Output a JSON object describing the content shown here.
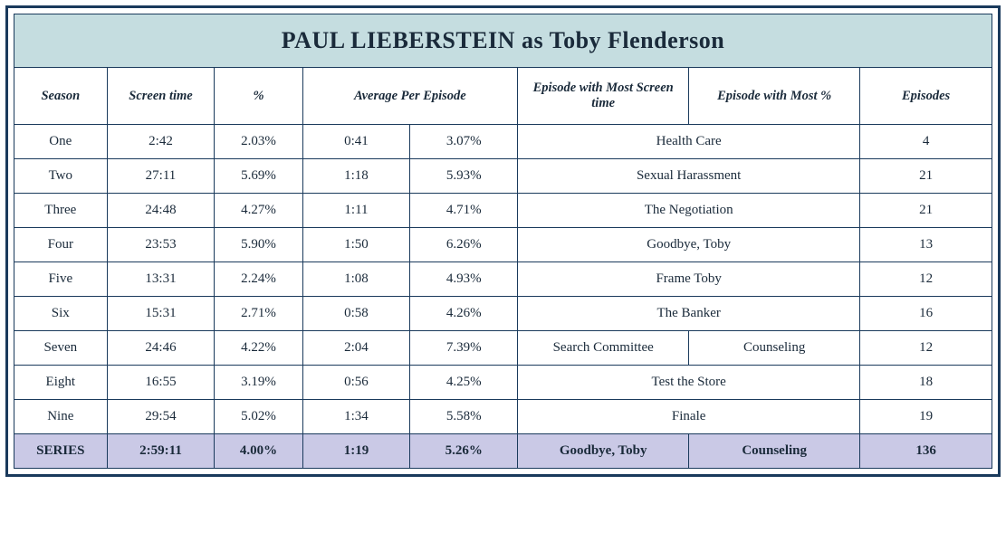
{
  "title_prefix": "PAUL LIEBERSTEIN",
  "title_mid": " as ",
  "title_suffix": "Toby Flenderson",
  "colors": {
    "border": "#1a3a5c",
    "title_bg": "#c5dde0",
    "series_bg": "#cac9e6",
    "text": "#1a2a3a"
  },
  "columns": {
    "season": "Season",
    "screen_time": "Screen time",
    "pct": "%",
    "avg_per_ep": "Average Per Episode",
    "most_time": "Episode with Most Screen time",
    "most_pct": "Episode with Most %",
    "episodes": "Episodes"
  },
  "rows": [
    {
      "season": "One",
      "screen_time": "2:42",
      "pct": "2.03%",
      "avg_time": "0:41",
      "avg_pct": "3.07%",
      "most_time": "Health Care",
      "most_pct": "Health Care",
      "merged_most": true,
      "episodes": "4"
    },
    {
      "season": "Two",
      "screen_time": "27:11",
      "pct": "5.69%",
      "avg_time": "1:18",
      "avg_pct": "5.93%",
      "most_time": "Sexual Harassment",
      "most_pct": "Sexual Harassment",
      "merged_most": true,
      "episodes": "21"
    },
    {
      "season": "Three",
      "screen_time": "24:48",
      "pct": "4.27%",
      "avg_time": "1:11",
      "avg_pct": "4.71%",
      "most_time": "The Negotiation",
      "most_pct": "The Negotiation",
      "merged_most": true,
      "episodes": "21"
    },
    {
      "season": "Four",
      "screen_time": "23:53",
      "pct": "5.90%",
      "avg_time": "1:50",
      "avg_pct": "6.26%",
      "most_time": "Goodbye, Toby",
      "most_pct": "Goodbye, Toby",
      "merged_most": true,
      "episodes": "13"
    },
    {
      "season": "Five",
      "screen_time": "13:31",
      "pct": "2.24%",
      "avg_time": "1:08",
      "avg_pct": "4.93%",
      "most_time": "Frame Toby",
      "most_pct": "Frame Toby",
      "merged_most": true,
      "episodes": "12"
    },
    {
      "season": "Six",
      "screen_time": "15:31",
      "pct": "2.71%",
      "avg_time": "0:58",
      "avg_pct": "4.26%",
      "most_time": "The Banker",
      "most_pct": "The Banker",
      "merged_most": true,
      "episodes": "16"
    },
    {
      "season": "Seven",
      "screen_time": "24:46",
      "pct": "4.22%",
      "avg_time": "2:04",
      "avg_pct": "7.39%",
      "most_time": "Search Committee",
      "most_pct": "Counseling",
      "merged_most": false,
      "episodes": "12"
    },
    {
      "season": "Eight",
      "screen_time": "16:55",
      "pct": "3.19%",
      "avg_time": "0:56",
      "avg_pct": "4.25%",
      "most_time": "Test the Store",
      "most_pct": "Test the Store",
      "merged_most": true,
      "episodes": "18"
    },
    {
      "season": "Nine",
      "screen_time": "29:54",
      "pct": "5.02%",
      "avg_time": "1:34",
      "avg_pct": "5.58%",
      "most_time": "Finale",
      "most_pct": "Finale",
      "merged_most": true,
      "episodes": "19"
    }
  ],
  "series": {
    "label": "SERIES",
    "screen_time": "2:59:11",
    "pct": "4.00%",
    "avg_time": "1:19",
    "avg_pct": "5.26%",
    "most_time": "Goodbye, Toby",
    "most_pct": "Counseling",
    "episodes": "136"
  },
  "col_widths_pct": [
    9.5,
    11,
    9,
    11,
    11,
    17.5,
    17.5,
    13.5
  ]
}
